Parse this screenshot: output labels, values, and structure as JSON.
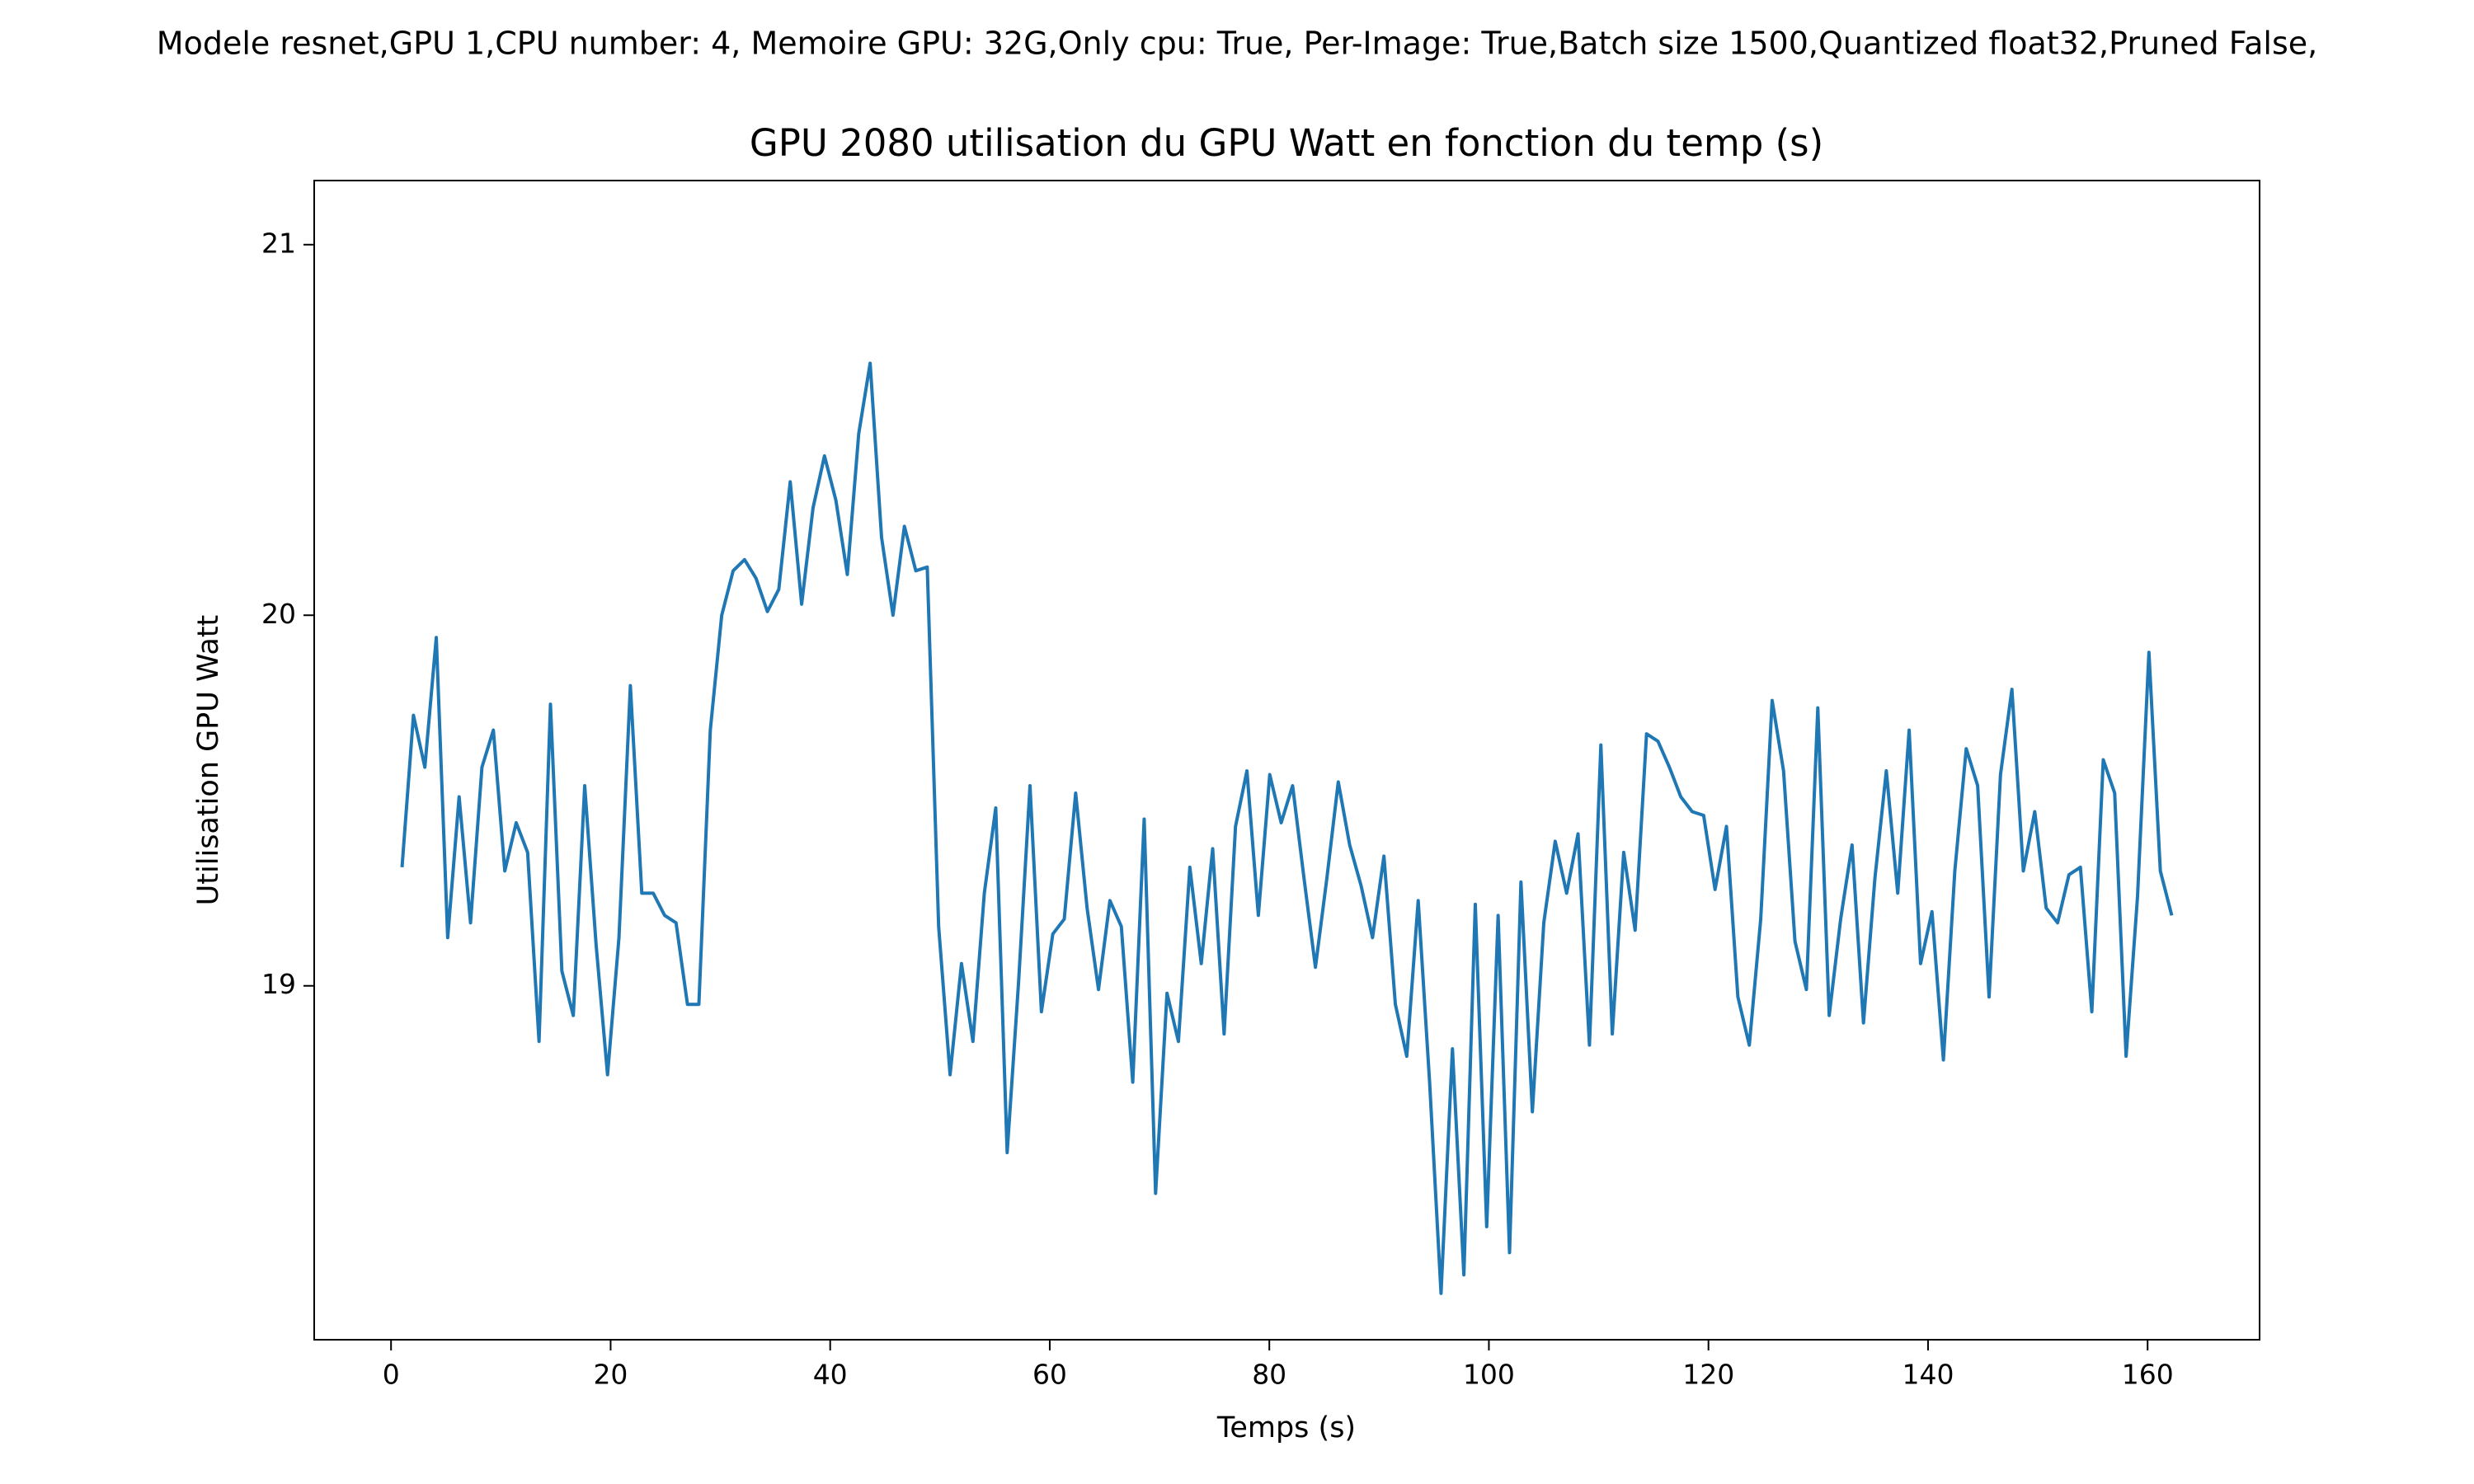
{
  "chart_data": {
    "type": "line",
    "suptitle": "Modele resnet,GPU 1,CPU number: 4, Memoire GPU: 32G,Only cpu: True, Per-Image: True,Batch size 1500,Quantized float32,Pruned False,",
    "title": "GPU 2080 utilisation du GPU Watt en fonction du temp (s)",
    "xlabel": "Temps (s)",
    "ylabel": "Utilisation GPU Watt",
    "x": [
      1,
      2.04,
      3.08,
      4.12,
      5.16,
      6.2,
      7.24,
      8.28,
      9.32,
      10.36,
      11.4,
      12.44,
      13.48,
      14.52,
      15.56,
      16.6,
      17.64,
      18.68,
      19.72,
      20.76,
      21.8,
      22.84,
      23.88,
      24.92,
      25.96,
      27,
      28.04,
      29.08,
      30.12,
      31.16,
      32.2,
      33.24,
      34.28,
      35.32,
      36.36,
      37.4,
      38.44,
      39.48,
      40.52,
      41.56,
      42.6,
      43.64,
      44.68,
      45.72,
      46.76,
      47.8,
      48.84,
      49.88,
      50.92,
      51.96,
      53,
      54.04,
      55.08,
      56.12,
      57.16,
      58.2,
      59.24,
      60.28,
      61.32,
      62.36,
      63.4,
      64.44,
      65.48,
      66.52,
      67.56,
      68.6,
      69.64,
      70.68,
      71.72,
      72.76,
      73.8,
      74.84,
      75.88,
      76.92,
      77.96,
      79,
      80.04,
      81.08,
      82.12,
      83.16,
      84.2,
      85.24,
      86.28,
      87.32,
      88.36,
      89.4,
      90.44,
      91.48,
      92.52,
      93.56,
      94.6,
      95.64,
      96.68,
      97.72,
      98.76,
      99.8,
      100.84,
      101.88,
      102.92,
      103.96,
      105,
      106.04,
      107.08,
      108.12,
      109.16,
      110.2,
      111.24,
      112.28,
      113.32,
      114.36,
      115.4,
      116.44,
      117.48,
      118.52,
      119.56,
      120.6,
      121.64,
      122.68,
      123.72,
      124.76,
      125.8,
      126.84,
      127.88,
      128.92,
      129.96,
      131,
      132.04,
      133.08,
      134.12,
      135.16,
      136.2,
      137.24,
      138.28,
      139.32,
      140.36,
      141.4,
      142.44,
      143.48,
      144.52,
      145.56,
      146.6,
      147.64,
      148.68,
      149.72,
      150.76,
      151.8,
      152.84,
      153.88,
      154.92,
      155.96,
      157,
      158.04,
      159.08,
      160.12,
      161.16,
      162.2
    ],
    "series": [
      {
        "color": "#1f77b4",
        "values": [
          19.32,
          19.73,
          19.59,
          19.94,
          19.13,
          19.51,
          19.17,
          19.59,
          19.69,
          19.31,
          19.44,
          19.36,
          18.85,
          19.76,
          19.04,
          18.92,
          19.54,
          19.11,
          18.76,
          19.13,
          19.81,
          19.25,
          19.25,
          19.19,
          19.17,
          18.95,
          18.95,
          19.69,
          20.0,
          20.12,
          20.15,
          20.1,
          20.01,
          20.07,
          20.36,
          20.03,
          20.29,
          20.43,
          20.31,
          20.11,
          20.49,
          20.68,
          20.21,
          20.0,
          20.24,
          20.12,
          20.13,
          19.16,
          18.76,
          19.06,
          18.85,
          19.25,
          19.48,
          18.55,
          19.01,
          19.54,
          18.93,
          19.14,
          19.18,
          19.52,
          19.21,
          18.99,
          19.23,
          19.16,
          18.74,
          19.45,
          18.44,
          18.98,
          18.85,
          19.32,
          19.06,
          19.37,
          18.87,
          19.43,
          19.58,
          19.19,
          19.57,
          19.44,
          19.54,
          19.29,
          19.05,
          19.29,
          19.55,
          19.38,
          19.27,
          19.13,
          19.35,
          18.95,
          18.81,
          19.23,
          18.74,
          18.17,
          18.83,
          18.22,
          19.22,
          18.35,
          19.19,
          18.28,
          19.28,
          18.66,
          19.17,
          19.39,
          19.25,
          19.41,
          18.84,
          19.65,
          18.87,
          19.36,
          19.15,
          19.68,
          19.66,
          19.59,
          19.51,
          19.47,
          19.46,
          19.26,
          19.43,
          18.97,
          18.84,
          19.18,
          19.77,
          19.58,
          19.12,
          18.99,
          19.75,
          18.92,
          19.18,
          19.38,
          18.9,
          19.29,
          19.58,
          19.25,
          19.69,
          19.06,
          19.2,
          18.8,
          19.31,
          19.64,
          19.54,
          18.97,
          19.57,
          19.8,
          19.31,
          19.47,
          19.21,
          19.17,
          19.3,
          19.32,
          18.93,
          19.61,
          19.52,
          18.81,
          19.24,
          19.9,
          19.31,
          19.19
        ]
      }
    ],
    "xlim": [
      -7.0,
      170.2
    ],
    "ylim": [
      18.045,
      21.173
    ],
    "xticks": [
      0,
      20,
      40,
      60,
      80,
      100,
      120,
      140,
      160
    ],
    "yticks": [
      19,
      20,
      21
    ]
  }
}
